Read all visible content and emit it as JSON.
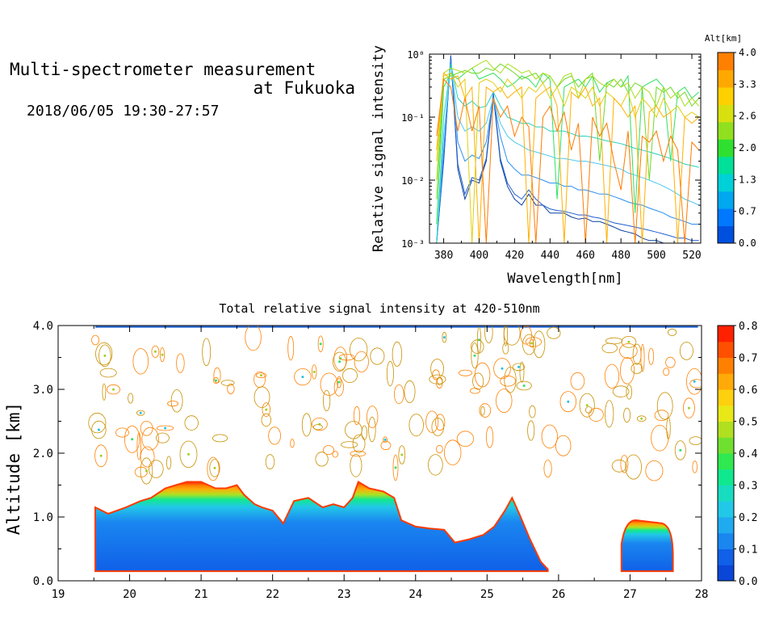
{
  "header": {
    "title_line1": "Multi-spectrometer measurement",
    "title_line2": "at Fukuoka",
    "datetime": "2018/06/05 19:30-27:57"
  },
  "chart_data": [
    {
      "type": "line",
      "title": "",
      "xlabel": "Wavelength[nm]",
      "ylabel": "Relative signal intensity",
      "xlim": [
        372,
        525
      ],
      "ylim": [
        0.001,
        1
      ],
      "yscale": "log",
      "x_ticks": [
        380,
        400,
        420,
        440,
        460,
        480,
        500,
        520
      ],
      "y_ticks": [
        {
          "value": 0.001,
          "label": "10⁻³"
        },
        {
          "value": 0.01,
          "label": "10⁻²"
        },
        {
          "value": 0.1,
          "label": "10⁻¹"
        },
        {
          "value": 1,
          "label": "10⁰"
        }
      ],
      "colorbar": {
        "label": "Alt[km]",
        "range": [
          0.0,
          4.0
        ],
        "tick_labels": [
          "0.0",
          "0.7",
          "1.3",
          "2.0",
          "2.6",
          "3.3",
          "4.0"
        ],
        "colors": [
          "#0050e0",
          "#0078ff",
          "#00a8f0",
          "#00d0d8",
          "#00e098",
          "#30e030",
          "#90e020",
          "#d8e010",
          "#ffd000",
          "#ffa800",
          "#ff8000"
        ]
      },
      "wavelengths": [
        376,
        380,
        384,
        388,
        392,
        396,
        400,
        404,
        408,
        412,
        416,
        420,
        424,
        428,
        432,
        436,
        440,
        444,
        448,
        452,
        456,
        460,
        464,
        468,
        472,
        476,
        480,
        484,
        488,
        492,
        496,
        500,
        504,
        508,
        512,
        516,
        520,
        524
      ],
      "series": [
        {
          "color": "#0a40a0",
          "values": [
            0.001,
            0.02,
            0.95,
            0.015,
            0.005,
            0.01,
            0.009,
            0.02,
            0.22,
            0.02,
            0.008,
            0.005,
            0.004,
            0.006,
            0.004,
            0.004,
            0.003,
            0.003,
            0.003,
            0.0026,
            0.0024,
            0.0025,
            0.0022,
            0.0022,
            0.002,
            0.0018,
            0.0016,
            0.0015,
            0.0014,
            0.0012,
            0.0011,
            0.0011,
            0.001,
            0.001,
            0.001,
            0.001,
            0.001,
            0.001
          ]
        },
        {
          "color": "#1f5fd0",
          "values": [
            0.001,
            0.022,
            0.9,
            0.018,
            0.006,
            0.011,
            0.01,
            0.022,
            0.24,
            0.022,
            0.009,
            0.006,
            0.005,
            0.007,
            0.005,
            0.004,
            0.0035,
            0.0033,
            0.0032,
            0.003,
            0.0028,
            0.0028,
            0.0026,
            0.0025,
            0.0023,
            0.0021,
            0.002,
            0.0019,
            0.0018,
            0.0017,
            0.0016,
            0.0015,
            0.0014,
            0.0013,
            0.0012,
            0.0012,
            0.0011,
            0.0011
          ]
        },
        {
          "color": "#2a90f0",
          "values": [
            0.001,
            0.03,
            0.8,
            0.04,
            0.02,
            0.025,
            0.022,
            0.04,
            0.2,
            0.05,
            0.02,
            0.015,
            0.012,
            0.012,
            0.011,
            0.01,
            0.009,
            0.009,
            0.008,
            0.008,
            0.007,
            0.007,
            0.0065,
            0.006,
            0.006,
            0.0055,
            0.005,
            0.0045,
            0.0042,
            0.004,
            0.0036,
            0.0033,
            0.003,
            0.0026,
            0.0024,
            0.0022,
            0.002,
            0.002
          ]
        },
        {
          "color": "#50c8f0",
          "values": [
            0.001,
            0.05,
            0.7,
            0.1,
            0.06,
            0.07,
            0.06,
            0.08,
            0.2,
            0.08,
            0.05,
            0.04,
            0.035,
            0.03,
            0.028,
            0.026,
            0.024,
            0.022,
            0.022,
            0.021,
            0.02,
            0.02,
            0.019,
            0.018,
            0.017,
            0.016,
            0.015,
            0.013,
            0.012,
            0.011,
            0.01,
            0.009,
            0.008,
            0.007,
            0.006,
            0.005,
            0.0045,
            0.004
          ]
        },
        {
          "color": "#28d0c0",
          "values": [
            0.001,
            0.1,
            0.7,
            0.2,
            0.15,
            0.18,
            0.14,
            0.15,
            0.25,
            0.15,
            0.1,
            0.09,
            0.08,
            0.08,
            0.07,
            0.07,
            0.06,
            0.06,
            0.06,
            0.055,
            0.05,
            0.05,
            0.048,
            0.045,
            0.042,
            0.04,
            0.038,
            0.035,
            0.032,
            0.03,
            0.028,
            0.026,
            0.024,
            0.022,
            0.02,
            0.018,
            0.017,
            0.016
          ]
        },
        {
          "color": "#30e060",
          "values": [
            0.002,
            0.3,
            0.5,
            0.4,
            0.5,
            0.6,
            0.4,
            0.45,
            0.5,
            0.4,
            0.3,
            0.35,
            0.45,
            0.4,
            0.3,
            0.5,
            0.4,
            0.005,
            0.3,
            0.35,
            0.4,
            0.3,
            0.45,
            0.25,
            0.35,
            0.4,
            0.3,
            0.45,
            0.003,
            0.3,
            0.35,
            0.4,
            0.3,
            0.02,
            0.25,
            0.3,
            0.2,
            0.25
          ]
        },
        {
          "color": "#70d828",
          "values": [
            0.005,
            0.4,
            0.45,
            0.5,
            0.55,
            0.5,
            0.5,
            0.6,
            0.55,
            0.7,
            0.6,
            0.5,
            0.4,
            0.45,
            0.5,
            0.35,
            0.45,
            0.3,
            0.4,
            0.45,
            0.3,
            0.4,
            0.5,
            0.02,
            0.35,
            0.3,
            0.4,
            0.25,
            0.35,
            0.3,
            0.01,
            0.3,
            0.25,
            0.3,
            0.2,
            0.25,
            0.15,
            0.2
          ]
        },
        {
          "color": "#a8dc18",
          "values": [
            0.01,
            0.5,
            0.6,
            0.55,
            0.5,
            0.6,
            0.7,
            0.8,
            0.6,
            0.5,
            0.7,
            0.6,
            0.5,
            0.55,
            0.4,
            0.5,
            0.45,
            0.3,
            0.45,
            0.5,
            0.2,
            0.4,
            0.45,
            0.35,
            0.3,
            0.4,
            0.3,
            0.35,
            0.2,
            0.3,
            0.25,
            0.15,
            0.3,
            0.2,
            0.25,
            0.15,
            0.2,
            0.15
          ]
        },
        {
          "color": "#e0d010",
          "values": [
            0.02,
            0.45,
            0.5,
            0.3,
            0.4,
            0.001,
            0.35,
            0.4,
            0.35,
            0.25,
            0.4,
            0.3,
            0.2,
            0.3,
            0.25,
            0.35,
            0.2,
            0.3,
            0.15,
            0.3,
            0.25,
            0.2,
            0.3,
            0.15,
            0.25,
            0.2,
            0.15,
            0.25,
            0.1,
            0.2,
            0.15,
            0.1,
            0.2,
            0.12,
            0.15,
            0.1,
            0.12,
            0.1
          ]
        },
        {
          "color": "#ffb000",
          "values": [
            0.03,
            0.5,
            0.4,
            0.45,
            0.2,
            0.3,
            0.001,
            0.3,
            0.25,
            0.3,
            0.2,
            0.25,
            0.3,
            0.001,
            0.2,
            0.25,
            0.3,
            0.15,
            0.001,
            0.25,
            0.2,
            0.3,
            0.15,
            0.2,
            0.001,
            0.2,
            0.15,
            0.1,
            0.15,
            0.001,
            0.12,
            0.15,
            0.1,
            0.12,
            0.001,
            0.1,
            0.08,
            0.1
          ]
        },
        {
          "color": "#ff7a00",
          "values": [
            0.05,
            0.4,
            0.3,
            0.06,
            0.2,
            0.06,
            0.15,
            0.001,
            0.2,
            0.1,
            0.15,
            0.05,
            0.1,
            0.07,
            0.001,
            0.1,
            0.15,
            0.06,
            0.12,
            0.03,
            0.08,
            0.001,
            0.1,
            0.05,
            0.08,
            0.02,
            0.007,
            0.06,
            0.001,
            0.05,
            0.04,
            0.06,
            0.02,
            0.05,
            0.03,
            0.001,
            0.04,
            0.03
          ]
        }
      ]
    },
    {
      "type": "heatmap",
      "title": "Total relative signal intensity at 420-510nm",
      "xlabel": "",
      "ylabel": "Altitude [km]",
      "xlim": [
        19,
        28
      ],
      "ylim": [
        0.0,
        4.0
      ],
      "x_ticks": [
        "19",
        "20",
        "21",
        "22",
        "23",
        "24",
        "25",
        "26",
        "27",
        "28"
      ],
      "y_ticks": [
        "0.0",
        "1.0",
        "2.0",
        "3.0",
        "4.0"
      ],
      "colorbar": {
        "range": [
          0.0,
          0.8
        ],
        "tick_labels": [
          "0.0",
          "0.1",
          "0.2",
          "0.3",
          "0.4",
          "0.5",
          "0.6",
          "0.7",
          "0.8"
        ],
        "colors": [
          "#0a46d8",
          "#1060e8",
          "#1a86f0",
          "#20aaf0",
          "#22c8e8",
          "#18dcc0",
          "#10e890",
          "#30e850",
          "#70e030",
          "#b0e020",
          "#e8e818",
          "#ffd010",
          "#ffaa08",
          "#ff8000",
          "#ff5000",
          "#ff2000"
        ]
      },
      "low_cloud_top_km": [
        [
          19.52,
          1.15
        ],
        [
          19.7,
          1.05
        ],
        [
          19.95,
          1.15
        ],
        [
          20.15,
          1.25
        ],
        [
          20.3,
          1.3
        ],
        [
          20.5,
          1.45
        ],
        [
          20.65,
          1.5
        ],
        [
          20.8,
          1.55
        ],
        [
          21.0,
          1.55
        ],
        [
          21.2,
          1.45
        ],
        [
          21.35,
          1.45
        ],
        [
          21.5,
          1.5
        ],
        [
          21.6,
          1.35
        ],
        [
          21.75,
          1.2
        ],
        [
          21.85,
          1.15
        ],
        [
          22.0,
          1.1
        ],
        [
          22.15,
          0.9
        ],
        [
          22.3,
          1.25
        ],
        [
          22.5,
          1.3
        ],
        [
          22.7,
          1.15
        ],
        [
          22.85,
          1.2
        ],
        [
          23.0,
          1.15
        ],
        [
          23.12,
          1.3
        ],
        [
          23.2,
          1.55
        ],
        [
          23.35,
          1.45
        ],
        [
          23.55,
          1.4
        ],
        [
          23.7,
          1.3
        ],
        [
          23.8,
          0.95
        ],
        [
          24.0,
          0.85
        ],
        [
          24.2,
          0.82
        ],
        [
          24.4,
          0.8
        ],
        [
          24.55,
          0.6
        ],
        [
          24.75,
          0.65
        ],
        [
          24.95,
          0.72
        ],
        [
          25.1,
          0.85
        ],
        [
          25.25,
          1.1
        ],
        [
          25.35,
          1.3
        ],
        [
          25.45,
          1.05
        ],
        [
          25.6,
          0.65
        ],
        [
          25.75,
          0.3
        ],
        [
          25.85,
          0.18
        ]
      ],
      "cloud_2_segment": {
        "x_start": 26.88,
        "x_end": 27.6,
        "top_km": 0.95
      },
      "time_extent": [
        19.52,
        27.95
      ]
    }
  ]
}
